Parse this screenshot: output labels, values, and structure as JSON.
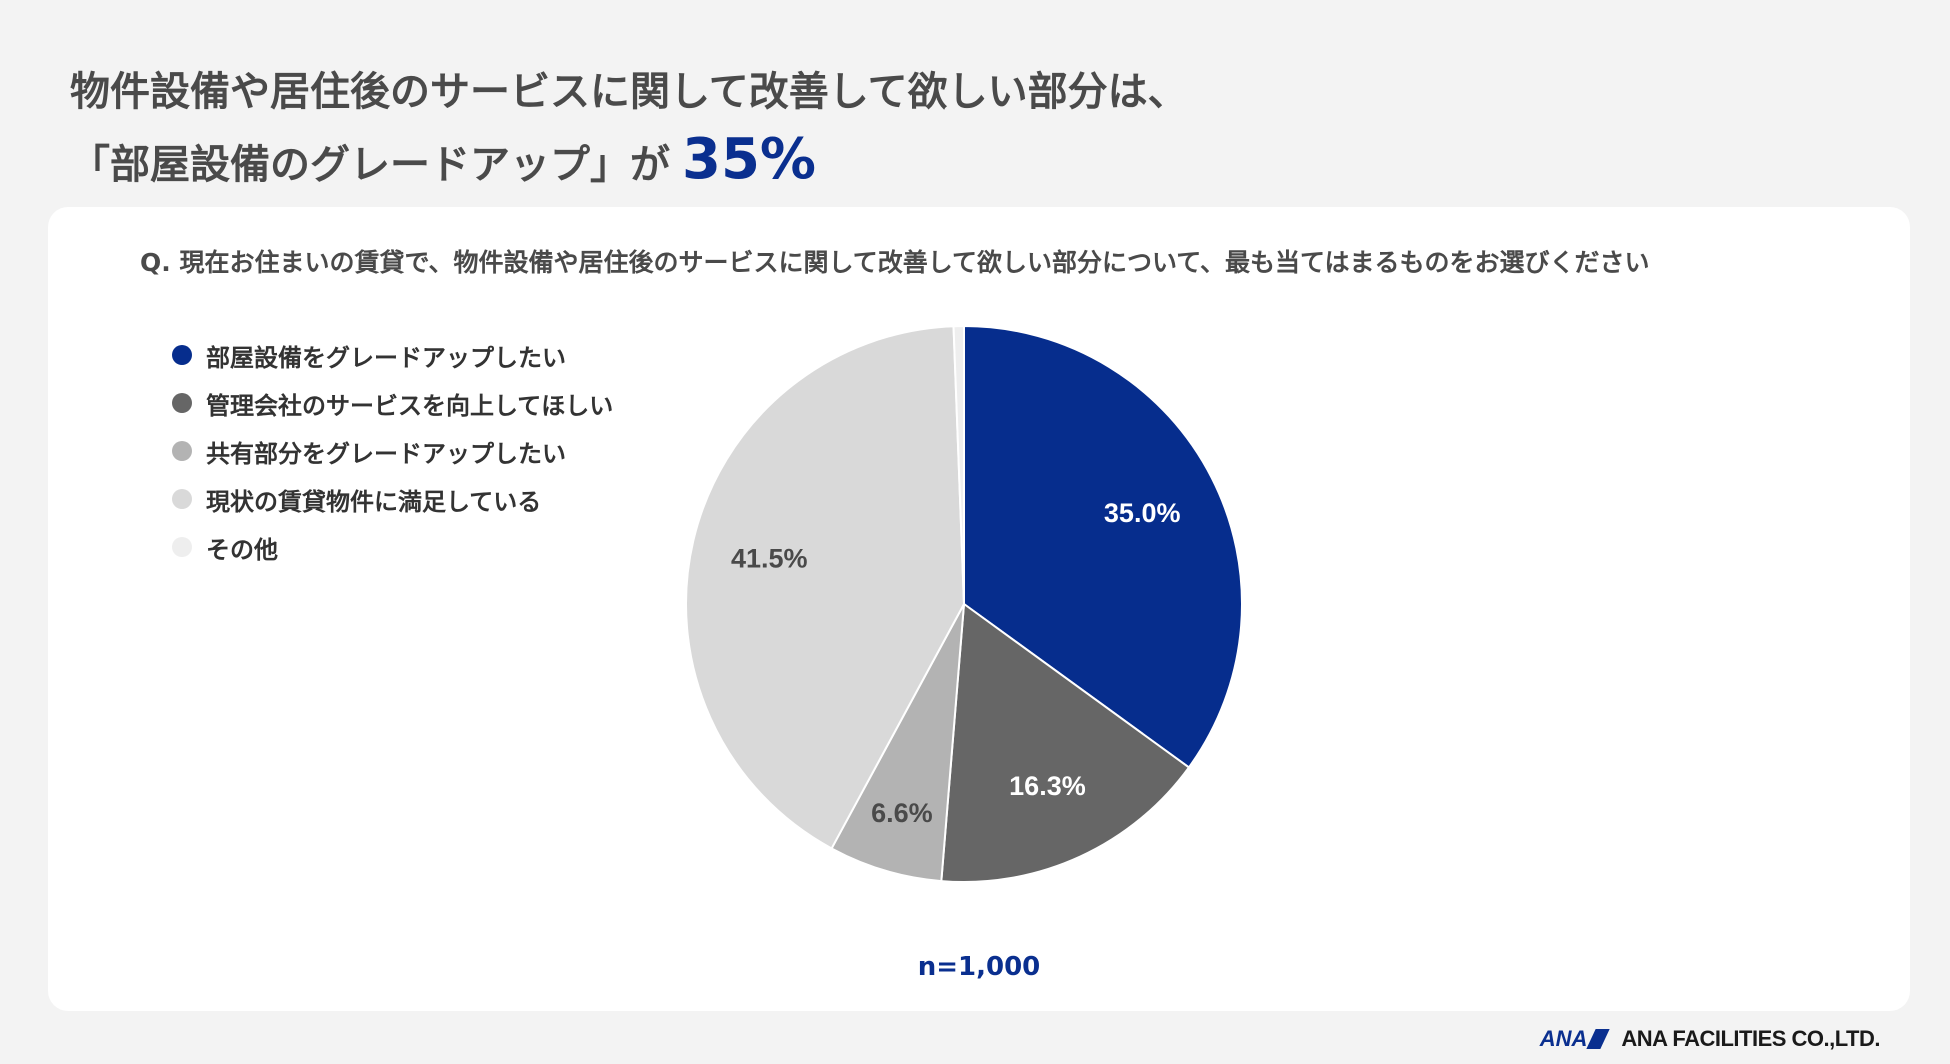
{
  "headline": {
    "line1": "物件設備や居住後のサービスに関して改善して欲しい部分は、",
    "line2": "「部屋設備のグレードアップ」が",
    "highlight": "35%"
  },
  "question": "Q. 現在お住まいの賃貸で、物件設備や居住後のサービスに関して改善して欲しい部分について、最も当てはまるものをお選びください",
  "sample_size": "n=1,000",
  "footer": {
    "logo_text": "ANA",
    "company": "ANA FACILITIES CO.,LTD."
  },
  "chart_data": {
    "type": "pie",
    "categories": [
      "部屋設備をグレードアップしたい",
      "管理会社のサービスを向上してほしい",
      "共有部分をグレードアップしたい",
      "現状の賃貸物件に満足している",
      "その他"
    ],
    "values": [
      35.0,
      16.3,
      6.6,
      41.5,
      0.6
    ],
    "labels": [
      "35.0%",
      "16.3%",
      "6.6%",
      "41.5%",
      ""
    ],
    "colors": [
      "#062d8d",
      "#666666",
      "#b3b3b3",
      "#d9d9d9",
      "#eeeeee"
    ],
    "label_colors": [
      "#ffffff",
      "#ffffff",
      "#4a4a4a",
      "#4a4a4a",
      "#4a4a4a"
    ],
    "legend_position": "top-left",
    "start": "top, clockwise"
  }
}
